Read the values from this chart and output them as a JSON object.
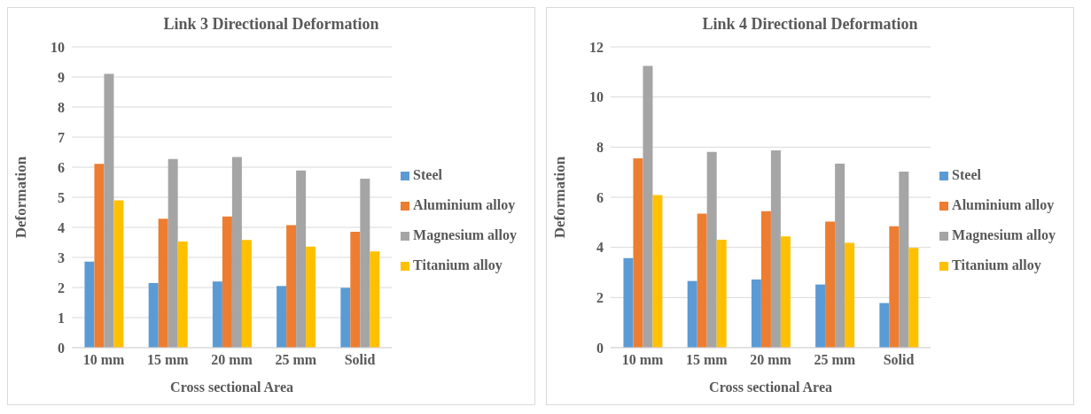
{
  "chart_data": [
    {
      "type": "bar",
      "title": "Link 3 Directional Deformation",
      "xlabel": "Cross sectional Area",
      "ylabel": "Deformation",
      "categories": [
        "10 mm",
        "15 mm",
        "20 mm",
        "25 mm",
        "Solid"
      ],
      "series": [
        {
          "name": "Steel",
          "color": "#5b9bd5",
          "values": [
            2.86,
            2.15,
            2.2,
            2.05,
            1.99
          ]
        },
        {
          "name": "Aluminium alloy",
          "color": "#ed7d31",
          "values": [
            6.11,
            4.29,
            4.36,
            4.07,
            3.85
          ]
        },
        {
          "name": "Magnesium alloy",
          "color": "#a5a5a5",
          "values": [
            9.1,
            6.27,
            6.34,
            5.89,
            5.62
          ]
        },
        {
          "name": "Titanium alloy",
          "color": "#ffc000",
          "values": [
            4.9,
            3.53,
            3.58,
            3.36,
            3.2
          ]
        }
      ],
      "ylim": [
        0,
        10
      ],
      "yticks": [
        0,
        1,
        2,
        3,
        4,
        5,
        6,
        7,
        8,
        9,
        10
      ],
      "grid": "y",
      "legend": "right"
    },
    {
      "type": "bar",
      "title": "Link 4 Directional Deformation",
      "xlabel": "Cross sectional Area",
      "ylabel": "Deformation",
      "categories": [
        "10 mm",
        "15 mm",
        "20 mm",
        "25 mm",
        "Solid"
      ],
      "series": [
        {
          "name": "Steel",
          "color": "#5b9bd5",
          "values": [
            3.57,
            2.66,
            2.72,
            2.52,
            1.78
          ]
        },
        {
          "name": "Aluminium alloy",
          "color": "#ed7d31",
          "values": [
            7.55,
            5.35,
            5.44,
            5.03,
            4.84
          ]
        },
        {
          "name": "Magnesium alloy",
          "color": "#a5a5a5",
          "values": [
            11.24,
            7.81,
            7.87,
            7.34,
            7.02
          ]
        },
        {
          "name": "Titanium alloy",
          "color": "#ffc000",
          "values": [
            6.09,
            4.31,
            4.44,
            4.18,
            3.98
          ]
        }
      ],
      "ylim": [
        0,
        12
      ],
      "yticks": [
        0,
        2,
        4,
        6,
        8,
        10,
        12
      ],
      "grid": "y",
      "legend": "right"
    }
  ]
}
